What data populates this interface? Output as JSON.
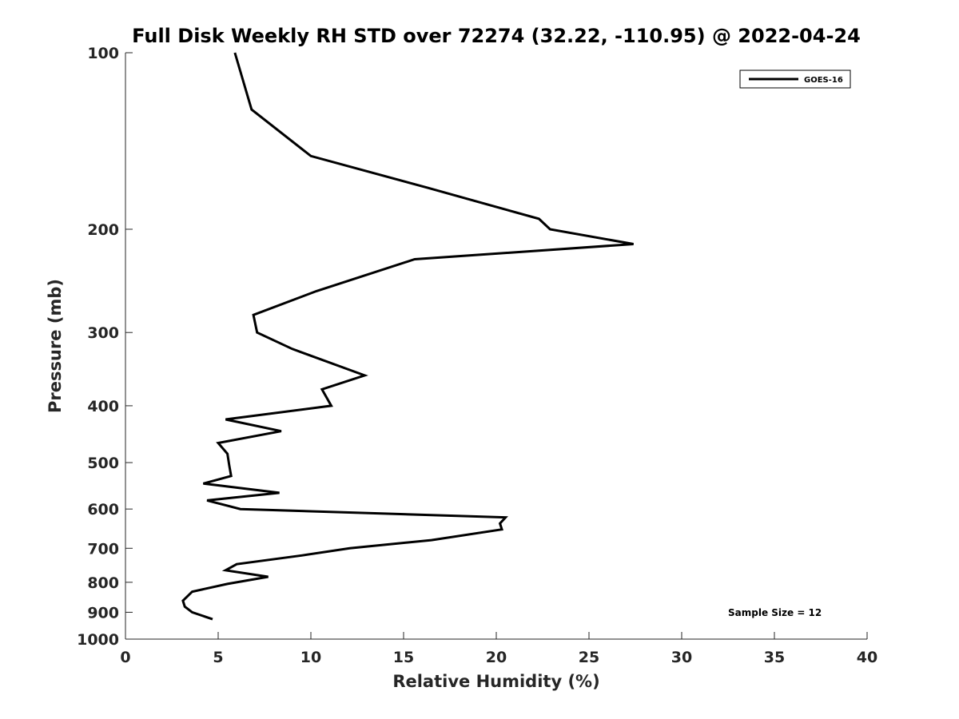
{
  "chart_data": {
    "type": "line",
    "title": "Full Disk Weekly RH STD over 72274 (32.22, -110.95) @ 2022-04-24",
    "xlabel": "Relative Humidity (%)",
    "ylabel": "Pressure (mb)",
    "xlim": [
      0,
      40
    ],
    "ylim": [
      100,
      1000
    ],
    "y_scale": "log",
    "y_reversed": true,
    "x_ticks": [
      "0",
      "5",
      "10",
      "15",
      "20",
      "25",
      "30",
      "35",
      "40"
    ],
    "y_ticks": [
      "100",
      "200",
      "300",
      "400",
      "500",
      "600",
      "700",
      "800",
      "900",
      "1000"
    ],
    "grid": false,
    "legend_position": "top-right",
    "annotation": "Sample Size = 12",
    "series": [
      {
        "name": "GOES-16",
        "color": "#000000",
        "points": [
          {
            "x": 5.9,
            "p": 100
          },
          {
            "x": 6.8,
            "p": 125
          },
          {
            "x": 10.0,
            "p": 150
          },
          {
            "x": 16.3,
            "p": 170
          },
          {
            "x": 22.3,
            "p": 192
          },
          {
            "x": 22.9,
            "p": 200
          },
          {
            "x": 27.4,
            "p": 212
          },
          {
            "x": 15.6,
            "p": 225
          },
          {
            "x": 10.3,
            "p": 255
          },
          {
            "x": 6.9,
            "p": 280
          },
          {
            "x": 7.1,
            "p": 300
          },
          {
            "x": 9.0,
            "p": 320
          },
          {
            "x": 12.9,
            "p": 355
          },
          {
            "x": 10.6,
            "p": 375
          },
          {
            "x": 11.1,
            "p": 400
          },
          {
            "x": 5.4,
            "p": 422
          },
          {
            "x": 8.4,
            "p": 442
          },
          {
            "x": 5.0,
            "p": 463
          },
          {
            "x": 5.5,
            "p": 483
          },
          {
            "x": 5.6,
            "p": 506
          },
          {
            "x": 5.7,
            "p": 527
          },
          {
            "x": 4.2,
            "p": 543
          },
          {
            "x": 8.3,
            "p": 563
          },
          {
            "x": 4.4,
            "p": 580
          },
          {
            "x": 6.2,
            "p": 600
          },
          {
            "x": 20.5,
            "p": 620
          },
          {
            "x": 20.2,
            "p": 635
          },
          {
            "x": 20.3,
            "p": 650
          },
          {
            "x": 16.5,
            "p": 678
          },
          {
            "x": 12.1,
            "p": 700
          },
          {
            "x": 9.5,
            "p": 720
          },
          {
            "x": 6.0,
            "p": 745
          },
          {
            "x": 5.4,
            "p": 763
          },
          {
            "x": 7.7,
            "p": 783
          },
          {
            "x": 5.5,
            "p": 805
          },
          {
            "x": 3.6,
            "p": 830
          },
          {
            "x": 3.1,
            "p": 860
          },
          {
            "x": 3.2,
            "p": 880
          },
          {
            "x": 3.6,
            "p": 900
          },
          {
            "x": 4.7,
            "p": 925
          }
        ]
      }
    ]
  }
}
